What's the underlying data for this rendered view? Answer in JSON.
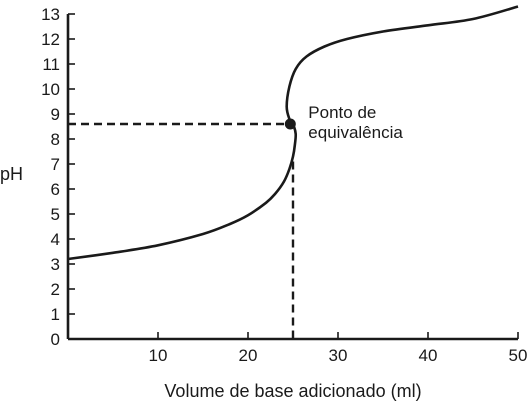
{
  "chart_data": {
    "type": "line",
    "xlabel": "Volume de base adicionado (ml)",
    "ylabel": "pH",
    "xlim": [
      0,
      50
    ],
    "ylim": [
      0,
      13
    ],
    "x_ticks": [
      "10",
      "20",
      "30",
      "40",
      "50"
    ],
    "y_ticks": [
      "0",
      "1",
      "2",
      "3",
      "4",
      "5",
      "6",
      "7",
      "8",
      "9",
      "10",
      "11",
      "12",
      "13"
    ],
    "grid": false,
    "series": [
      {
        "x": [
          0,
          5,
          10,
          15,
          18,
          20,
          22,
          23,
          24,
          24.6,
          25,
          25.2,
          25.3,
          25.1,
          24.6,
          24.3,
          24.6,
          25.3,
          26.5,
          28.5,
          31,
          35,
          40,
          45,
          50
        ],
        "y": [
          3.2,
          3.45,
          3.75,
          4.2,
          4.6,
          4.95,
          5.45,
          5.8,
          6.3,
          6.8,
          7.3,
          7.75,
          8.2,
          8.5,
          8.8,
          9.3,
          10.1,
          10.8,
          11.3,
          11.7,
          12.0,
          12.3,
          12.55,
          12.8,
          13.3
        ]
      }
    ],
    "equivalence_point": {
      "x": 24.7,
      "y": 8.6
    },
    "annotations": [
      {
        "lines": [
          "Ponto de",
          "equivalência"
        ]
      }
    ]
  }
}
